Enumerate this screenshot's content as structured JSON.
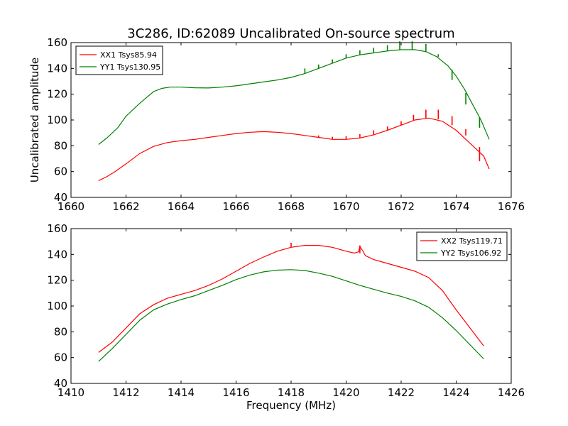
{
  "figure": {
    "title": "3C286, ID:62089 Uncalibrated On-source spectrum",
    "ylabel": "Uncalibrated amplitude",
    "xlabel": "Frequency (MHz)"
  },
  "chart_data": [
    {
      "type": "line",
      "xlim": [
        1660,
        1676
      ],
      "ylim": [
        40,
        160
      ],
      "xticks": [
        "1660",
        "1662",
        "1664",
        "1666",
        "1668",
        "1670",
        "1672",
        "1674",
        "1676"
      ],
      "yticks": [
        "40",
        "60",
        "80",
        "100",
        "120",
        "140",
        "160"
      ],
      "legend_position": "upper-left",
      "series": [
        {
          "name": "XX1 Tsys85.94",
          "color": "#ff0000",
          "points": [
            [
              1661.0,
              53
            ],
            [
              1661.3,
              56
            ],
            [
              1661.6,
              60
            ],
            [
              1662.0,
              66
            ],
            [
              1662.5,
              74
            ],
            [
              1663.0,
              79.5
            ],
            [
              1663.5,
              82.5
            ],
            [
              1664.0,
              84
            ],
            [
              1664.5,
              85
            ],
            [
              1665.0,
              86.5
            ],
            [
              1665.5,
              88
            ],
            [
              1666.0,
              89.5
            ],
            [
              1666.5,
              90.5
            ],
            [
              1667.0,
              91
            ],
            [
              1667.5,
              90.5
            ],
            [
              1668.0,
              89.5
            ],
            [
              1668.5,
              88
            ],
            [
              1669.0,
              86.5
            ],
            [
              1669.5,
              85
            ],
            [
              1670.0,
              85
            ],
            [
              1670.5,
              86
            ],
            [
              1671.0,
              88.5
            ],
            [
              1671.5,
              92
            ],
            [
              1672.0,
              96
            ],
            [
              1672.5,
              100
            ],
            [
              1673.0,
              101.5
            ],
            [
              1673.5,
              99
            ],
            [
              1674.0,
              92
            ],
            [
              1674.5,
              82
            ],
            [
              1675.0,
              72
            ],
            [
              1675.2,
              62
            ]
          ],
          "spikes": [
            [
              1669.0,
              86.5,
              88
            ],
            [
              1669.5,
              85,
              87
            ],
            [
              1670.0,
              85,
              87.5
            ],
            [
              1670.5,
              86,
              89
            ],
            [
              1671.0,
              88.5,
              92
            ],
            [
              1671.5,
              92,
              95
            ],
            [
              1672.0,
              96,
              99
            ],
            [
              1672.45,
              99.5,
              104
            ],
            [
              1672.9,
              101.5,
              108
            ],
            [
              1673.35,
              100.5,
              108
            ],
            [
              1673.85,
              96,
              103
            ],
            [
              1674.35,
              88,
              93
            ],
            [
              1674.85,
              68,
              79
            ]
          ]
        },
        {
          "name": "YY1 Tsys130.95",
          "color": "#008000",
          "points": [
            [
              1661.0,
              81
            ],
            [
              1661.3,
              86
            ],
            [
              1661.7,
              94
            ],
            [
              1662.0,
              103
            ],
            [
              1662.5,
              113
            ],
            [
              1663.0,
              122
            ],
            [
              1663.3,
              124.5
            ],
            [
              1663.6,
              125.5
            ],
            [
              1664.0,
              125.5
            ],
            [
              1664.5,
              125
            ],
            [
              1665.0,
              124.8
            ],
            [
              1665.5,
              125.5
            ],
            [
              1666.0,
              126.5
            ],
            [
              1666.5,
              128
            ],
            [
              1667.0,
              129.5
            ],
            [
              1667.5,
              131
            ],
            [
              1668.0,
              133
            ],
            [
              1668.5,
              136
            ],
            [
              1669.0,
              140
            ],
            [
              1669.5,
              144
            ],
            [
              1670.0,
              148
            ],
            [
              1670.5,
              150.5
            ],
            [
              1671.0,
              152
            ],
            [
              1671.5,
              153.5
            ],
            [
              1672.0,
              154.5
            ],
            [
              1672.5,
              154.5
            ],
            [
              1672.9,
              153
            ],
            [
              1673.3,
              149
            ],
            [
              1673.7,
              142
            ],
            [
              1674.0,
              134
            ],
            [
              1674.3,
              124
            ],
            [
              1674.6,
              112
            ],
            [
              1674.9,
              100
            ],
            [
              1675.2,
              85
            ]
          ],
          "spikes": [
            [
              1668.5,
              136,
              140
            ],
            [
              1669.0,
              140,
              143
            ],
            [
              1669.5,
              144,
              147
            ],
            [
              1670.0,
              148,
              151
            ],
            [
              1670.5,
              150.5,
              154
            ],
            [
              1671.0,
              152,
              156
            ],
            [
              1671.5,
              153.5,
              158
            ],
            [
              1671.95,
              154.5,
              161
            ],
            [
              1672.4,
              154.5,
              161
            ],
            [
              1672.9,
              153,
              159
            ],
            [
              1673.35,
              149,
              151
            ],
            [
              1673.85,
              131,
              139
            ],
            [
              1674.35,
              112,
              121
            ],
            [
              1674.85,
              94,
              102
            ]
          ]
        }
      ]
    },
    {
      "type": "line",
      "xlim": [
        1410,
        1426
      ],
      "ylim": [
        40,
        160
      ],
      "xticks": [
        "1410",
        "1412",
        "1414",
        "1416",
        "1418",
        "1420",
        "1422",
        "1424",
        "1426"
      ],
      "yticks": [
        "40",
        "60",
        "80",
        "100",
        "120",
        "140",
        "160"
      ],
      "legend_position": "upper-right",
      "series": [
        {
          "name": "XX2 Tsys119.71",
          "color": "#ff0000",
          "points": [
            [
              1411.0,
              64
            ],
            [
              1411.5,
              72
            ],
            [
              1412.0,
              83
            ],
            [
              1412.5,
              94
            ],
            [
              1413.0,
              101
            ],
            [
              1413.5,
              106
            ],
            [
              1414.0,
              109
            ],
            [
              1414.5,
              112
            ],
            [
              1415.0,
              116
            ],
            [
              1415.5,
              121
            ],
            [
              1416.0,
              127
            ],
            [
              1416.5,
              133
            ],
            [
              1417.0,
              138
            ],
            [
              1417.5,
              142.5
            ],
            [
              1418.0,
              145.5
            ],
            [
              1418.5,
              147
            ],
            [
              1419.0,
              147
            ],
            [
              1419.5,
              145.5
            ],
            [
              1420.0,
              142.5
            ],
            [
              1420.3,
              141
            ],
            [
              1420.45,
              142
            ],
            [
              1420.5,
              146
            ],
            [
              1420.6,
              143
            ],
            [
              1420.7,
              139
            ],
            [
              1421.0,
              136
            ],
            [
              1421.5,
              133
            ],
            [
              1422.0,
              130
            ],
            [
              1422.5,
              127
            ],
            [
              1423.0,
              122
            ],
            [
              1423.5,
              112
            ],
            [
              1424.0,
              97
            ],
            [
              1424.5,
              83
            ],
            [
              1425.0,
              69
            ]
          ],
          "spikes": [
            [
              1418.0,
              145.5,
              149
            ],
            [
              1420.5,
              141,
              147
            ]
          ]
        },
        {
          "name": "YY2 Tsys106.92",
          "color": "#008000",
          "points": [
            [
              1411.0,
              57
            ],
            [
              1411.5,
              67
            ],
            [
              1412.0,
              78
            ],
            [
              1412.5,
              89
            ],
            [
              1413.0,
              97
            ],
            [
              1413.5,
              101.5
            ],
            [
              1414.0,
              105
            ],
            [
              1414.5,
              108
            ],
            [
              1415.0,
              112
            ],
            [
              1415.5,
              116
            ],
            [
              1416.0,
              120.5
            ],
            [
              1416.5,
              124
            ],
            [
              1417.0,
              126.5
            ],
            [
              1417.5,
              127.8
            ],
            [
              1418.0,
              128.2
            ],
            [
              1418.5,
              127.5
            ],
            [
              1419.0,
              125.5
            ],
            [
              1419.5,
              123
            ],
            [
              1420.0,
              119.5
            ],
            [
              1420.5,
              116
            ],
            [
              1421.0,
              113
            ],
            [
              1421.5,
              110
            ],
            [
              1422.0,
              107.5
            ],
            [
              1422.5,
              104
            ],
            [
              1423.0,
              99
            ],
            [
              1423.5,
              91
            ],
            [
              1424.0,
              81
            ],
            [
              1424.5,
              70
            ],
            [
              1425.0,
              59
            ]
          ],
          "spikes": []
        }
      ]
    }
  ]
}
